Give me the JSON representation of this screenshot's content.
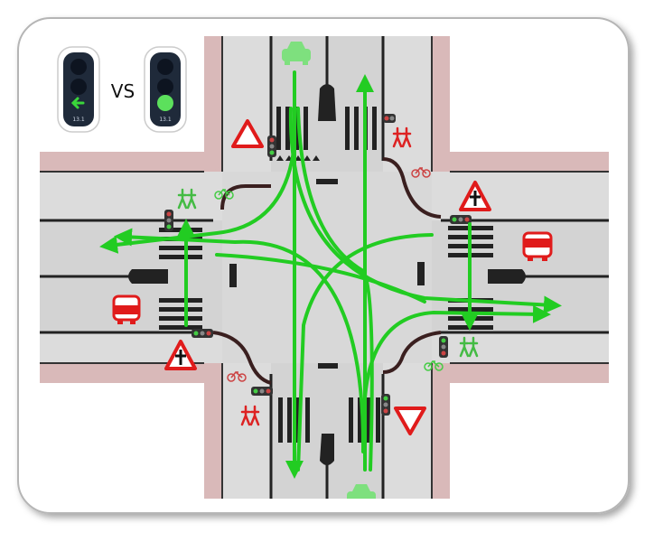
{
  "comparison": {
    "vs_label": "VS",
    "left_signal": {
      "countdown": "13.1",
      "arrow_icon": "left-arrow-icon",
      "lamp_color": "#3ad63a"
    },
    "right_signal": {
      "countdown": "13.1",
      "lamp_color": "#5ce05c",
      "lit": "full-green"
    }
  },
  "colors": {
    "sidewalk": "#d9b9b9",
    "road": "#dcdcdc",
    "curb": "#3a1f1f",
    "turn_path": "#22cc22",
    "yield_sign": "#e01b1b",
    "vehicle": "#e01b1b",
    "vehicle_green": "#7ee07e"
  },
  "signs": [
    {
      "name": "yield-sign-north",
      "kind": "yield"
    },
    {
      "name": "priority-junction-sign-east",
      "kind": "priority-junction"
    },
    {
      "name": "priority-junction-sign-west",
      "kind": "priority-junction"
    },
    {
      "name": "yield-sign-south",
      "kind": "yield"
    }
  ]
}
